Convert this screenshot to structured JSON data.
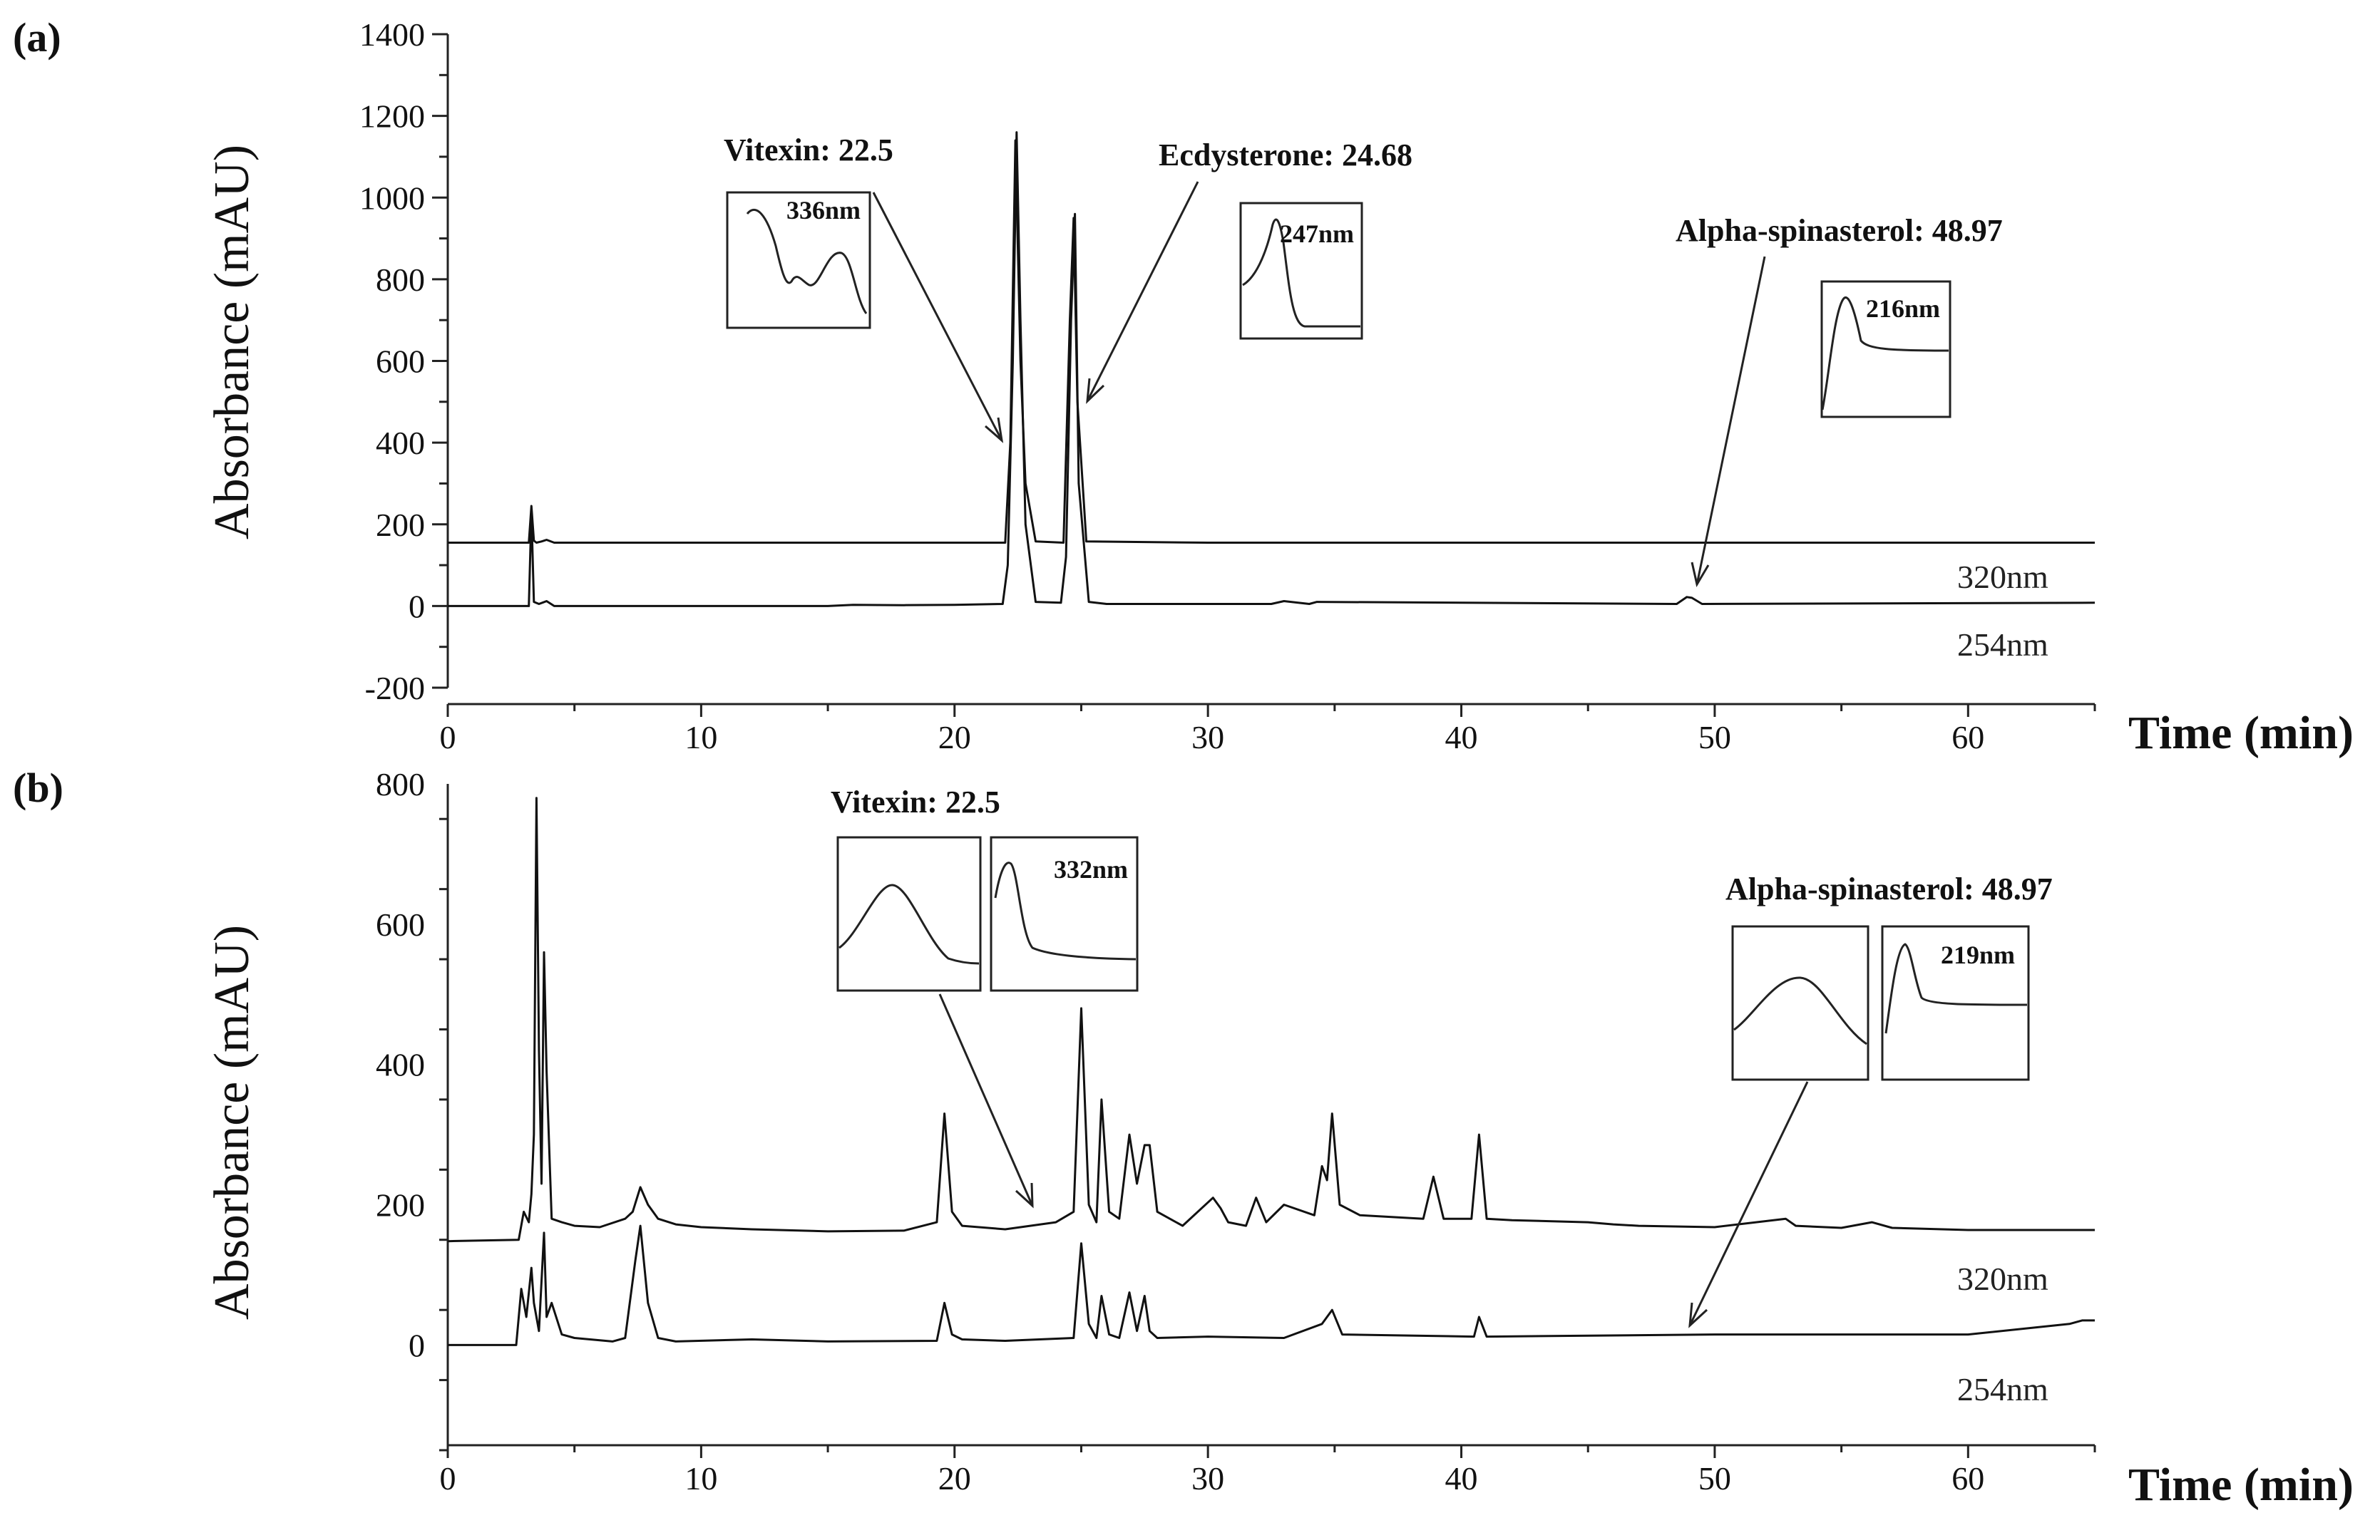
{
  "chart_data": [
    {
      "panel_label": "(a)",
      "type": "line",
      "xlabel": "Time (min)",
      "ylabel": "Absorbance (mAU)",
      "xlim": [
        0,
        65
      ],
      "ylim": [
        -200,
        1400
      ],
      "x_ticks": [
        0,
        10,
        20,
        30,
        40,
        50,
        60
      ],
      "y_ticks": [
        -200,
        0,
        200,
        400,
        600,
        800,
        1000,
        1200,
        1400
      ],
      "series": [
        {
          "name": "320nm",
          "x": [
            0,
            3.2,
            3.3,
            3.4,
            3.5,
            3.7,
            3.9,
            4.2,
            10,
            22.0,
            22.2,
            22.4,
            22.6,
            22.8,
            23.2,
            24.3,
            24.55,
            24.7,
            24.85,
            25.2,
            30,
            65
          ],
          "y": [
            155,
            155,
            245,
            160,
            155,
            158,
            162,
            155,
            155,
            155,
            400,
            1140,
            600,
            300,
            158,
            155,
            700,
            950,
            500,
            158,
            155,
            155
          ]
        },
        {
          "name": "254nm",
          "x": [
            0,
            3.2,
            3.3,
            3.4,
            3.6,
            3.9,
            4.2,
            15,
            16,
            18,
            20,
            21.9,
            22.1,
            22.3,
            22.45,
            22.6,
            22.8,
            23.2,
            24.2,
            24.4,
            24.6,
            24.75,
            24.9,
            25.3,
            26,
            32.5,
            33,
            34,
            34.3,
            48.5,
            48.9,
            49.1,
            49.5,
            65
          ],
          "y": [
            0,
            0,
            230,
            10,
            5,
            12,
            0,
            0,
            3,
            2,
            3,
            5,
            100,
            600,
            1160,
            700,
            200,
            10,
            8,
            120,
            700,
            960,
            300,
            10,
            5,
            5,
            12,
            5,
            10,
            5,
            22,
            20,
            5,
            8
          ]
        }
      ],
      "annotations": [
        {
          "label": "Vitexin:  22.5",
          "peak": "336nm",
          "x": 22.5
        },
        {
          "label": "Ecdysterone:  24.68",
          "peak": "247nm",
          "x": 24.68
        },
        {
          "label": "Alpha-spinasterol:  48.97",
          "peak": "216nm",
          "x": 48.97
        }
      ]
    },
    {
      "panel_label": "(b)",
      "type": "line",
      "xlabel": "Time (min)",
      "ylabel": "Absorbance (mAU)",
      "xlim": [
        0,
        65
      ],
      "ylim": [
        -150,
        800
      ],
      "x_ticks": [
        0,
        10,
        20,
        30,
        40,
        50,
        60
      ],
      "y_ticks": [
        0,
        200,
        400,
        600,
        800
      ],
      "series": [
        {
          "name": "320nm",
          "x": [
            0,
            2.8,
            3.0,
            3.2,
            3.3,
            3.4,
            3.5,
            3.6,
            3.7,
            3.8,
            3.9,
            4.1,
            4.5,
            5.0,
            6.0,
            7.0,
            7.3,
            7.6,
            7.9,
            8.3,
            9.0,
            10,
            12,
            15,
            18,
            19.3,
            19.6,
            19.9,
            20.3,
            22,
            24,
            24.7,
            25.0,
            25.3,
            25.6,
            25.8,
            26.1,
            26.5,
            26.9,
            27.2,
            27.5,
            27.7,
            28.0,
            29,
            30.2,
            30.5,
            30.8,
            31.5,
            31.9,
            32.3,
            33.0,
            34.2,
            34.5,
            34.7,
            34.9,
            35.2,
            36,
            38.5,
            38.9,
            39.3,
            40.4,
            40.7,
            41.0,
            42,
            45,
            46,
            47,
            50,
            52.8,
            53.2,
            55,
            56.2,
            57,
            60,
            65
          ],
          "y": [
            148,
            150,
            190,
            175,
            215,
            300,
            780,
            420,
            230,
            560,
            390,
            180,
            175,
            170,
            168,
            180,
            190,
            225,
            200,
            180,
            172,
            168,
            165,
            162,
            163,
            175,
            330,
            190,
            170,
            165,
            175,
            190,
            480,
            200,
            175,
            350,
            190,
            180,
            300,
            230,
            285,
            285,
            190,
            170,
            210,
            195,
            175,
            170,
            210,
            175,
            200,
            185,
            255,
            235,
            330,
            200,
            185,
            180,
            240,
            180,
            180,
            300,
            180,
            178,
            175,
            172,
            170,
            168,
            180,
            170,
            167,
            175,
            167,
            164,
            164
          ]
        },
        {
          "name": "254nm",
          "x": [
            0,
            2.7,
            2.9,
            3.1,
            3.3,
            3.4,
            3.6,
            3.8,
            3.9,
            4.1,
            4.5,
            5,
            6.5,
            7.0,
            7.4,
            7.6,
            7.9,
            8.3,
            9,
            12,
            15,
            19.3,
            19.6,
            19.9,
            20.3,
            22,
            24.7,
            25.0,
            25.3,
            25.6,
            25.8,
            26.1,
            26.5,
            26.9,
            27.2,
            27.5,
            27.7,
            28.0,
            30,
            33,
            34.5,
            34.9,
            35.3,
            40.5,
            40.7,
            41.0,
            50,
            60,
            64,
            64.5,
            65
          ],
          "y": [
            0,
            0,
            80,
            40,
            110,
            60,
            20,
            160,
            40,
            60,
            15,
            10,
            5,
            10,
            120,
            170,
            60,
            10,
            5,
            8,
            5,
            6,
            60,
            15,
            8,
            6,
            10,
            145,
            30,
            10,
            70,
            15,
            10,
            75,
            20,
            70,
            20,
            10,
            12,
            10,
            30,
            50,
            15,
            12,
            40,
            12,
            15,
            15,
            30,
            35,
            35
          ]
        }
      ],
      "annotations": [
        {
          "label": "Vitexin:  22.5",
          "peak": "332nm",
          "x": 22.5
        },
        {
          "label": "Alpha-spinasterol:  48.97",
          "peak": "219nm",
          "x": 48.97
        }
      ]
    }
  ],
  "figure": {
    "panel_a": "(a)",
    "panel_b": "(b)",
    "ylabel_a": "Absorbance (mAU)",
    "ylabel_b": "Absorbance (mAU)",
    "xlabel_a": "Time (min)",
    "xlabel_b": "Time (min)",
    "wl_a_320": "320nm",
    "wl_a_254": "254nm",
    "wl_b_320": "320nm",
    "wl_b_254": "254nm",
    "ann_a_vitexin": "Vitexin:  22.5",
    "ann_a_ecdysterone": "Ecdysterone:  24.68",
    "ann_a_spinasterol": "Alpha-spinasterol:  48.97",
    "ann_b_vitexin": "Vitexin:  22.5",
    "ann_b_spinasterol": "Alpha-spinasterol:  48.97",
    "inset_a1_peak": "336nm",
    "inset_a2_peak": "247nm",
    "inset_a3_peak": "216nm",
    "inset_b1_peak": "332nm",
    "inset_b2_peak": "219nm"
  }
}
